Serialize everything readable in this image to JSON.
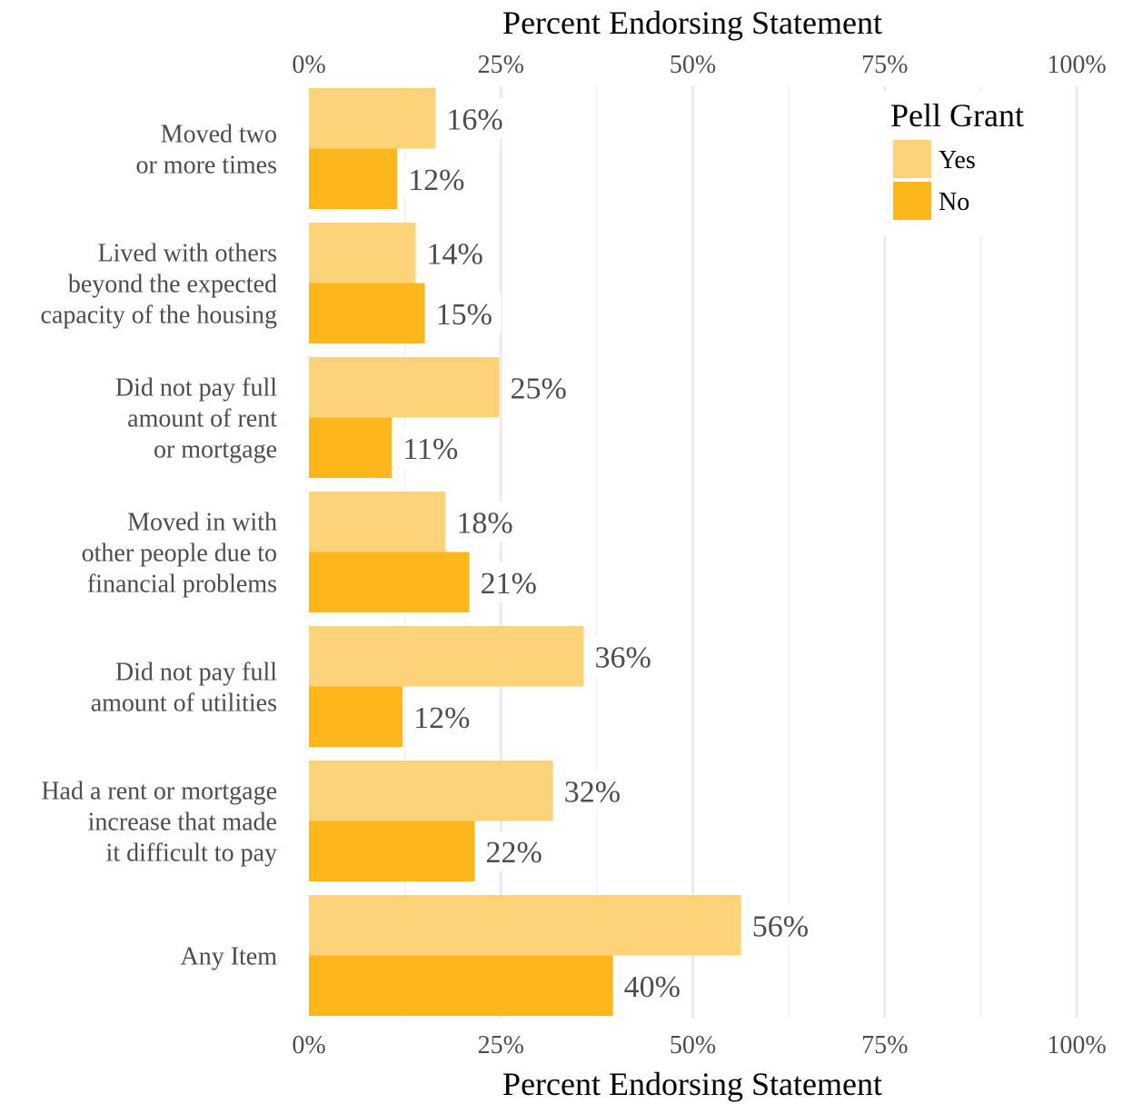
{
  "chart_data": {
    "type": "bar",
    "orientation": "horizontal",
    "xlabel_top": "Percent Endorsing Statement",
    "xlabel_bottom": "Percent Endorsing Statement",
    "xlim": [
      0,
      100
    ],
    "ticks": [
      "0%",
      "25%",
      "50%",
      "75%",
      "100%"
    ],
    "tick_values": [
      0,
      25,
      50,
      75,
      100
    ],
    "grid": true,
    "legend": {
      "title": "Pell Grant",
      "position": "top-right"
    },
    "categories": [
      [
        "Moved two",
        "or more times"
      ],
      [
        "Lived with others",
        "beyond the expected",
        "capacity of the housing"
      ],
      [
        "Did not pay full",
        "amount of rent",
        "or mortgage"
      ],
      [
        "Moved in with",
        "other people due to",
        "financial problems"
      ],
      [
        "Did not pay full",
        "amount of utilities"
      ],
      [
        "Had a rent or mortgage",
        "increase that made",
        "it difficult to pay"
      ],
      [
        "Any Item"
      ]
    ],
    "series": [
      {
        "name": "Yes",
        "color": "#FDD37A",
        "values": [
          16.5,
          13.9,
          24.8,
          17.8,
          35.8,
          31.8,
          56.3
        ],
        "labels": [
          "16%",
          "14%",
          "25%",
          "18%",
          "36%",
          "32%",
          "56%"
        ]
      },
      {
        "name": "No",
        "color": "#FDB71C",
        "values": [
          11.5,
          15.1,
          10.8,
          20.9,
          12.2,
          21.6,
          39.6
        ],
        "labels": [
          "12%",
          "15%",
          "11%",
          "21%",
          "12%",
          "22%",
          "40%"
        ]
      }
    ]
  }
}
